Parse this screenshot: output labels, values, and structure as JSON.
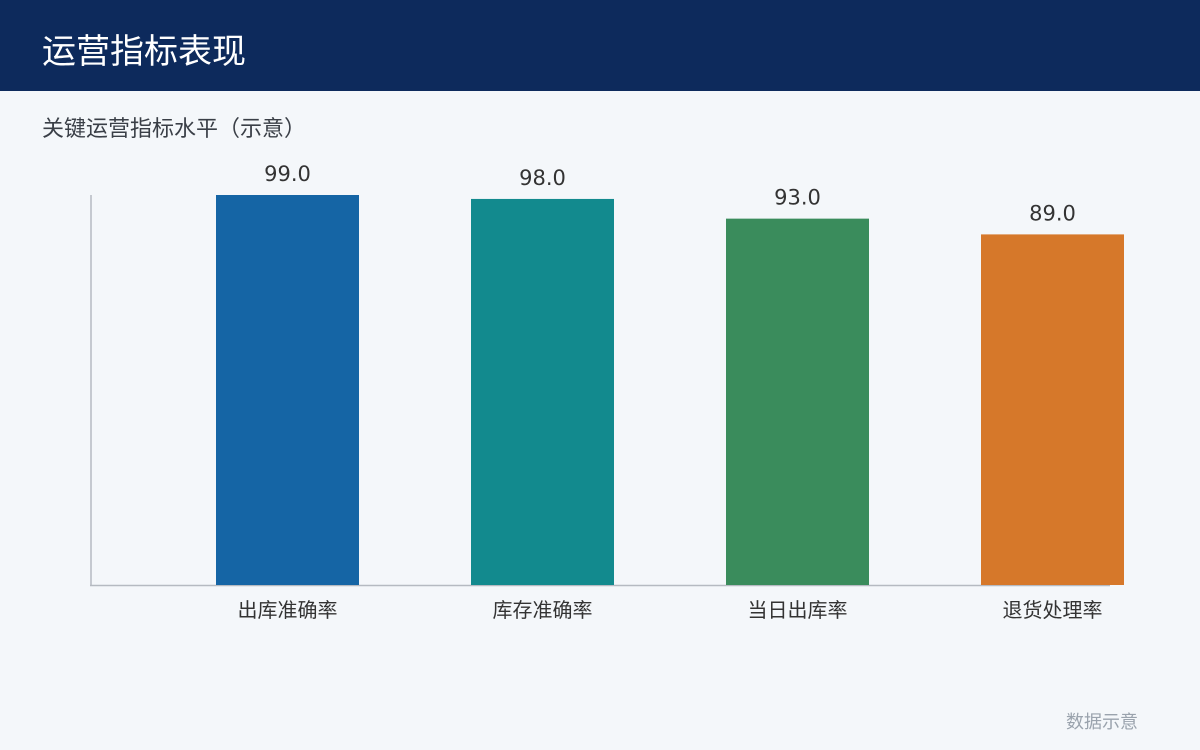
{
  "header": {
    "title": "运营指标表现"
  },
  "chart_data": {
    "type": "bar",
    "title": "关键运营指标水平（示意）",
    "categories": [
      "出库准确率",
      "库存准确率",
      "当日出库率",
      "退货处理率"
    ],
    "values": [
      99,
      98,
      93,
      89
    ],
    "value_labels": [
      "99.0",
      "98.0",
      "93.0",
      "89.0"
    ],
    "colors": [
      "#1565a5",
      "#128a8e",
      "#3a8c5c",
      "#d6782a"
    ],
    "ylim": [
      0,
      99
    ]
  },
  "footer": {
    "note": "数据示意"
  }
}
